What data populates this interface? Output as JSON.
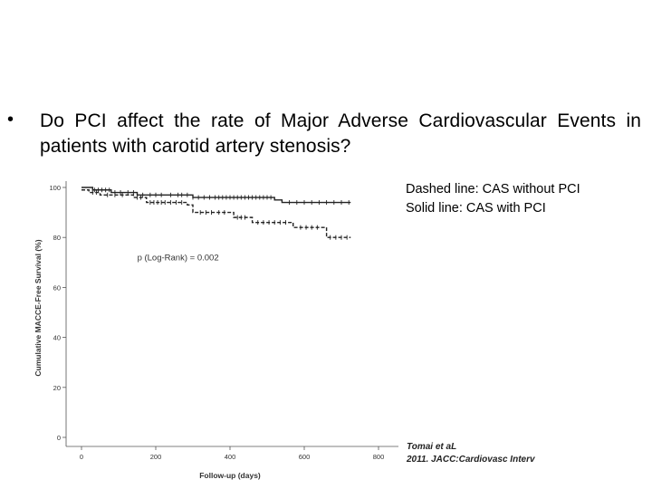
{
  "slide": {
    "bullet_text": "Do PCI affect the rate of Major Adverse Cardiovascular Events in patients with carotid artery stenosis?",
    "note_lines": [
      "Dashed line: CAS without PCI",
      "Solid line: CAS with PCI"
    ],
    "citation_lines": [
      "Tomai et aL",
      "2011. JACC:Cardiovasc Interv"
    ]
  },
  "chart_data": {
    "type": "line",
    "title": "",
    "xlabel": "Follow-up (days)",
    "ylabel": "Cumulative MACCE-Free Survival (%)",
    "xlim": [
      0,
      800
    ],
    "ylim": [
      0,
      100
    ],
    "x_ticks": [
      0,
      200,
      400,
      600,
      800
    ],
    "y_ticks": [
      0,
      20,
      40,
      60,
      80,
      100
    ],
    "annotation": "p (Log-Rank) = 0.002",
    "series": [
      {
        "name": "CAS with PCI",
        "style": "solid",
        "steps": [
          [
            0,
            100
          ],
          [
            30,
            99
          ],
          [
            80,
            98
          ],
          [
            150,
            97
          ],
          [
            300,
            96
          ],
          [
            520,
            95
          ],
          [
            540,
            94
          ],
          [
            725,
            94
          ]
        ],
        "censor_x": [
          35,
          45,
          55,
          65,
          75,
          90,
          105,
          125,
          140,
          165,
          185,
          200,
          215,
          240,
          260,
          270,
          285,
          300,
          315,
          330,
          345,
          360,
          370,
          380,
          390,
          400,
          410,
          420,
          430,
          440,
          450,
          460,
          470,
          480,
          490,
          500,
          510,
          560,
          580,
          600,
          620,
          640,
          660,
          680,
          700,
          720
        ]
      },
      {
        "name": "CAS without PCI",
        "style": "dashed",
        "steps": [
          [
            0,
            99
          ],
          [
            20,
            98
          ],
          [
            50,
            97
          ],
          [
            140,
            96
          ],
          [
            175,
            94
          ],
          [
            285,
            93
          ],
          [
            300,
            90
          ],
          [
            410,
            88
          ],
          [
            460,
            86
          ],
          [
            570,
            84
          ],
          [
            660,
            80
          ],
          [
            725,
            80
          ]
        ],
        "censor_x": [
          30,
          40,
          70,
          90,
          110,
          150,
          160,
          185,
          195,
          205,
          215,
          225,
          240,
          255,
          270,
          320,
          335,
          350,
          370,
          385,
          420,
          430,
          440,
          475,
          490,
          505,
          520,
          535,
          550,
          590,
          605,
          620,
          635,
          670,
          685,
          700,
          715
        ]
      }
    ]
  }
}
